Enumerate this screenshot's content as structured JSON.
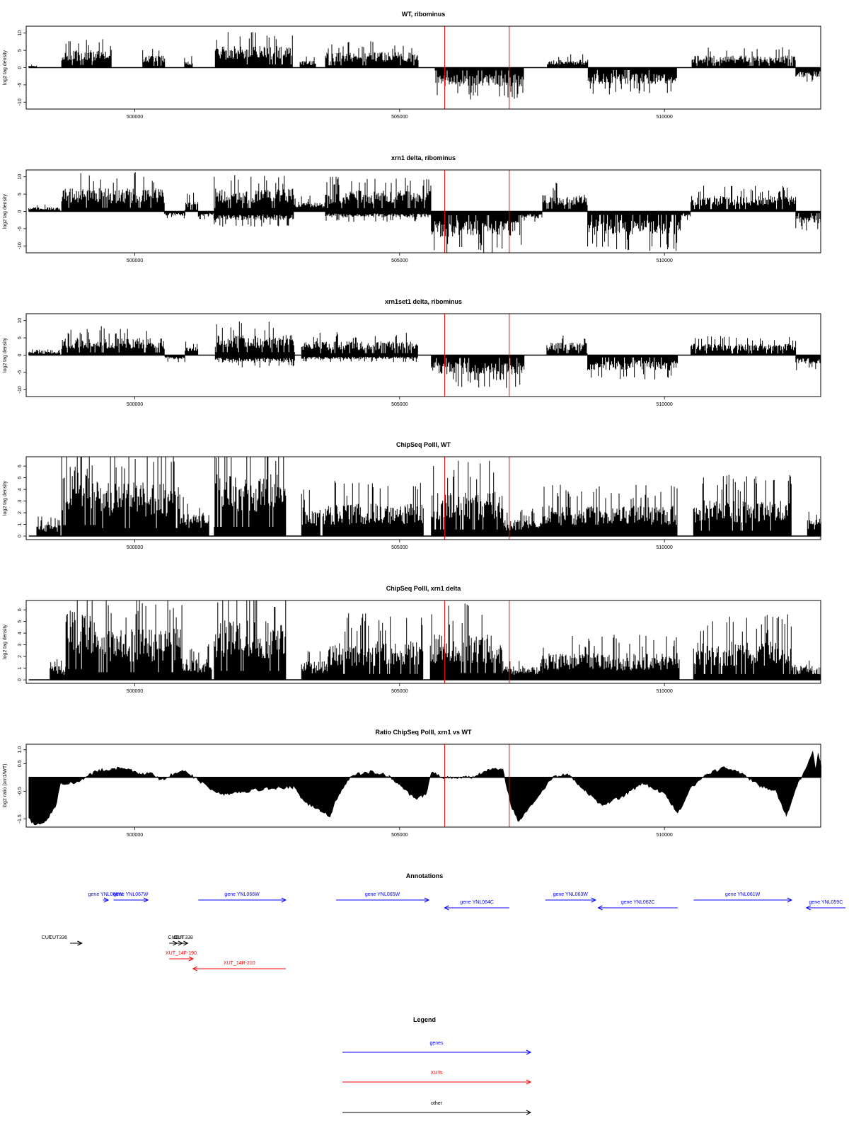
{
  "colors": {
    "gene": "#0000ff",
    "xut": "#ff0000",
    "other": "#000000",
    "marker": "#ff0000",
    "signal": "#000000"
  },
  "chart_data": [
    {
      "type": "area",
      "title": "WT, ribominus",
      "ylabel": "log2 tag density",
      "xlim": [
        497950,
        512950
      ],
      "ylim": [
        -12,
        12
      ],
      "yticks": [
        -10,
        -5,
        0,
        5,
        10
      ],
      "ytick_labels": [
        "-10",
        "-5",
        "0",
        "5",
        "10"
      ],
      "xticks": [
        500000,
        505000,
        510000
      ],
      "xtick_labels": [
        "500000",
        "505000",
        "510000"
      ],
      "markers_x": [
        505850,
        507070
      ],
      "grid": false,
      "segments": [
        {
          "x": [
            498000,
            498150
          ],
          "y": 0.6
        },
        {
          "x": [
            498620,
            499560
          ],
          "y": 5.2
        },
        {
          "x": [
            500150,
            500570
          ],
          "y": 3.5
        },
        {
          "x": [
            500940,
            501100
          ],
          "y": 2.0
        },
        {
          "x": [
            501520,
            502980
          ],
          "y": 6.3
        },
        {
          "x": [
            503120,
            503420
          ],
          "y": 2.0
        },
        {
          "x": [
            503600,
            505350
          ],
          "y": 4.5
        },
        {
          "x": [
            505670,
            507340
          ],
          "y": -5.5
        },
        {
          "x": [
            507790,
            508560
          ],
          "y": 2.3
        },
        {
          "x": [
            508560,
            510230
          ],
          "y": -4.8
        },
        {
          "x": [
            510520,
            512480
          ],
          "y": 3.5
        },
        {
          "x": [
            512480,
            512960
          ],
          "y": -2.8
        }
      ]
    },
    {
      "type": "area",
      "title": "xrn1 delta, ribominus",
      "ylabel": "log2 tag density",
      "xlim": [
        497950,
        512950
      ],
      "ylim": [
        -12,
        12
      ],
      "yticks": [
        -10,
        -5,
        0,
        5,
        10
      ],
      "ytick_labels": [
        "-10",
        "-5",
        "0",
        "5",
        "10"
      ],
      "xticks": [
        500000,
        505000,
        510000
      ],
      "xtick_labels": [
        "500000",
        "505000",
        "510000"
      ],
      "markers_x": [
        505850,
        507070
      ],
      "grid": false,
      "segments": [
        {
          "x": [
            498000,
            498600
          ],
          "y": 1.2
        },
        {
          "x": [
            498620,
            500560
          ],
          "y": 6.8
        },
        {
          "x": [
            500560,
            500950
          ],
          "y": -1.3
        },
        {
          "x": [
            500950,
            501200
          ],
          "y": 3.2
        },
        {
          "x": [
            501200,
            501500
          ],
          "y": -1.6
        },
        {
          "x": [
            501500,
            503000
          ],
          "y": 6.6
        },
        {
          "x": [
            501500,
            503000
          ],
          "y": -2.6
        },
        {
          "x": [
            503000,
            503600
          ],
          "y": 2.8
        },
        {
          "x": [
            503600,
            505600
          ],
          "y": 6.1
        },
        {
          "x": [
            503600,
            505600
          ],
          "y": -1.8
        },
        {
          "x": [
            505600,
            507300
          ],
          "y": -7.5
        },
        {
          "x": [
            507300,
            507700
          ],
          "y": -2.0
        },
        {
          "x": [
            507700,
            508550
          ],
          "y": 5.0
        },
        {
          "x": [
            508550,
            510300
          ],
          "y": -6.8
        },
        {
          "x": [
            510300,
            510500
          ],
          "y": -1.5
        },
        {
          "x": [
            510500,
            512480
          ],
          "y": 4.5
        },
        {
          "x": [
            512480,
            512960
          ],
          "y": -3.5
        }
      ]
    },
    {
      "type": "area",
      "title": "xrn1set1 delta, ribominus",
      "ylabel": "log2 tag density",
      "xlim": [
        497950,
        512950
      ],
      "ylim": [
        -12,
        12
      ],
      "yticks": [
        -10,
        -5,
        0,
        5,
        10
      ],
      "ytick_labels": [
        "-10",
        "-5",
        "0",
        "5",
        "10"
      ],
      "xticks": [
        500000,
        505000,
        510000
      ],
      "xtick_labels": [
        "500000",
        "505000",
        "510000"
      ],
      "markers_x": [
        505850,
        507070
      ],
      "grid": false,
      "segments": [
        {
          "x": [
            498000,
            498600
          ],
          "y": 1.0
        },
        {
          "x": [
            498620,
            500570
          ],
          "y": 5.0
        },
        {
          "x": [
            500570,
            500950
          ],
          "y": -1.2
        },
        {
          "x": [
            500950,
            501200
          ],
          "y": 2.4
        },
        {
          "x": [
            501520,
            503020
          ],
          "y": 5.8
        },
        {
          "x": [
            501520,
            503020
          ],
          "y": -2.2
        },
        {
          "x": [
            503150,
            505350
          ],
          "y": 4.0
        },
        {
          "x": [
            503150,
            505350
          ],
          "y": -1.2
        },
        {
          "x": [
            505600,
            507350
          ],
          "y": -5.6
        },
        {
          "x": [
            507780,
            508550
          ],
          "y": 3.6
        },
        {
          "x": [
            508550,
            510250
          ],
          "y": -4.5
        },
        {
          "x": [
            510500,
            512480
          ],
          "y": 3.3
        },
        {
          "x": [
            512480,
            512960
          ],
          "y": -2.6
        }
      ]
    },
    {
      "type": "area",
      "title": "ChipSeq PolII, WT",
      "ylabel": "log2 tag density",
      "xlim": [
        497950,
        512950
      ],
      "ylim": [
        -0.3,
        6.8
      ],
      "yticks": [
        0,
        1,
        2,
        3,
        4,
        5,
        6
      ],
      "ytick_labels": [
        "0",
        "1",
        "2",
        "3",
        "4",
        "5",
        "6"
      ],
      "xticks": [
        500000,
        505000,
        510000
      ],
      "xtick_labels": [
        "500000",
        "505000",
        "510000"
      ],
      "markers_x": [
        505850,
        507070
      ],
      "grid": false,
      "segments": [
        {
          "x": [
            498150,
            498600
          ],
          "y": 1.0
        },
        {
          "x": [
            498620,
            499300
          ],
          "y": 6.3
        },
        {
          "x": [
            499300,
            500850
          ],
          "y": 4.6
        },
        {
          "x": [
            500850,
            501400
          ],
          "y": 2.0
        },
        {
          "x": [
            501500,
            502850
          ],
          "y": 5.3
        },
        {
          "x": [
            503150,
            503500
          ],
          "y": 2.5
        },
        {
          "x": [
            503550,
            505450
          ],
          "y": 2.8
        },
        {
          "x": [
            505600,
            506950
          ],
          "y": 3.8
        },
        {
          "x": [
            506950,
            507700
          ],
          "y": 1.4
        },
        {
          "x": [
            507700,
            510250
          ],
          "y": 2.6
        },
        {
          "x": [
            510550,
            512400
          ],
          "y": 3.1
        },
        {
          "x": [
            512700,
            512960
          ],
          "y": 1.5
        }
      ]
    },
    {
      "type": "area",
      "title": "ChipSeq PolII, xrn1 delta",
      "ylabel": "log2 tag density",
      "xlim": [
        497950,
        512950
      ],
      "ylim": [
        -0.3,
        6.8
      ],
      "yticks": [
        0,
        1,
        2,
        3,
        4,
        5,
        6
      ],
      "ytick_labels": [
        "0",
        "1",
        "2",
        "3",
        "4",
        "5",
        "6"
      ],
      "xticks": [
        500000,
        505000,
        510000
      ],
      "xtick_labels": [
        "500000",
        "505000",
        "510000"
      ],
      "markers_x": [
        505850,
        507070
      ],
      "grid": false,
      "segments": [
        {
          "x": [
            498400,
            498700
          ],
          "y": 1.2
        },
        {
          "x": [
            498700,
            499300
          ],
          "y": 6.2
        },
        {
          "x": [
            499300,
            500900
          ],
          "y": 4.4
        },
        {
          "x": [
            500900,
            501450
          ],
          "y": 1.8
        },
        {
          "x": [
            501500,
            502850
          ],
          "y": 5.1
        },
        {
          "x": [
            503150,
            503650
          ],
          "y": 1.6
        },
        {
          "x": [
            503650,
            505450
          ],
          "y": 3.4
        },
        {
          "x": [
            505580,
            506950
          ],
          "y": 3.9
        },
        {
          "x": [
            506950,
            507700
          ],
          "y": 1.2
        },
        {
          "x": [
            507700,
            510280
          ],
          "y": 2.3
        },
        {
          "x": [
            510550,
            512400
          ],
          "y": 3.3
        },
        {
          "x": [
            512400,
            512960
          ],
          "y": 1.3
        }
      ]
    },
    {
      "type": "area",
      "title": "Ratio ChipSeq PolII, xrn1 vs WT",
      "ylabel": "log2 ratio (xrn1/WT)",
      "xlim": [
        497950,
        512950
      ],
      "ylim": [
        -1.8,
        1.2
      ],
      "yticks": [
        -1.5,
        -0.5,
        0.5,
        1.0
      ],
      "ytick_labels": [
        "-1.5",
        "-0.5",
        "0.5",
        "1.0"
      ],
      "xticks": [
        500000,
        505000,
        510000
      ],
      "xtick_labels": [
        "500000",
        "505000",
        "510000"
      ],
      "markers_x": [
        505850,
        507070
      ],
      "grid": false,
      "ratio_points": [
        [
          498000,
          -1.5
        ],
        [
          498100,
          -1.7
        ],
        [
          498300,
          -1.6
        ],
        [
          498500,
          -1.1
        ],
        [
          498600,
          -0.2
        ],
        [
          498900,
          -0.2
        ],
        [
          499300,
          0.25
        ],
        [
          499800,
          0.35
        ],
        [
          500100,
          0.1
        ],
        [
          500300,
          0.15
        ],
        [
          500500,
          -0.1
        ],
        [
          500900,
          0.3
        ],
        [
          501500,
          -0.5
        ],
        [
          501700,
          -0.6
        ],
        [
          502500,
          -0.4
        ],
        [
          503000,
          -0.35
        ],
        [
          503200,
          -0.9
        ],
        [
          503500,
          -1.2
        ],
        [
          503700,
          -1.4
        ],
        [
          503800,
          -0.8
        ],
        [
          504100,
          0.1
        ],
        [
          504500,
          0.2
        ],
        [
          504800,
          0.05
        ],
        [
          505000,
          -0.3
        ],
        [
          505300,
          -0.8
        ],
        [
          505500,
          -0.6
        ],
        [
          505600,
          0.2
        ],
        [
          505800,
          0.0
        ],
        [
          506400,
          0.0
        ],
        [
          506700,
          0.3
        ],
        [
          506950,
          0.3
        ],
        [
          507100,
          -1.0
        ],
        [
          507250,
          -1.6
        ],
        [
          507400,
          -1.2
        ],
        [
          507700,
          -0.5
        ],
        [
          507900,
          0.05
        ],
        [
          508200,
          0.1
        ],
        [
          508500,
          -0.5
        ],
        [
          508800,
          -1.0
        ],
        [
          509200,
          -0.7
        ],
        [
          509600,
          -0.2
        ],
        [
          510000,
          -0.6
        ],
        [
          510250,
          -1.3
        ],
        [
          510500,
          -0.4
        ],
        [
          510800,
          0.1
        ],
        [
          511100,
          0.35
        ],
        [
          511500,
          0.1
        ],
        [
          511800,
          -0.3
        ],
        [
          512100,
          -0.5
        ],
        [
          512300,
          -1.4
        ],
        [
          512500,
          -0.3
        ],
        [
          512700,
          0.4
        ],
        [
          512800,
          1.0
        ],
        [
          512850,
          0.3
        ],
        [
          512900,
          0.85
        ],
        [
          512960,
          0.4
        ]
      ]
    }
  ],
  "annotations": {
    "title": "Annotations",
    "features": [
      {
        "label": "gene YNL068W",
        "type": "gene",
        "strand": "+",
        "x": [
          499400,
          499500
        ],
        "row": 0
      },
      {
        "label": "gene YNL067W",
        "type": "gene",
        "strand": "+",
        "x": [
          499600,
          500250
        ],
        "row": 0
      },
      {
        "label": "gene YNL066W",
        "type": "gene",
        "strand": "+",
        "x": [
          501200,
          502850
        ],
        "row": 0
      },
      {
        "label": "gene YNL065W",
        "type": "gene",
        "strand": "+",
        "x": [
          503800,
          505550
        ],
        "row": 0
      },
      {
        "label": "gene YNL064C",
        "type": "gene",
        "strand": "-",
        "x": [
          505850,
          507070
        ],
        "row": 1
      },
      {
        "label": "gene YNL063W",
        "type": "gene",
        "strand": "+",
        "x": [
          507750,
          508700
        ],
        "row": 0
      },
      {
        "label": "gene YNL062C",
        "type": "gene",
        "strand": "-",
        "x": [
          508750,
          510250
        ],
        "row": 1
      },
      {
        "label": "gene YNL061W",
        "type": "gene",
        "strand": "+",
        "x": [
          510550,
          512400
        ],
        "row": 0
      },
      {
        "label": "gene YNL059C",
        "type": "gene",
        "strand": "-",
        "x": [
          512680,
          514600
        ],
        "row": 1
      },
      {
        "label": "CUT",
        "type": "other",
        "strand": "+",
        "x": [
          498780,
          499000
        ],
        "row": 2
      },
      {
        "label": "CUT336",
        "type": "other",
        "strand": "+",
        "x": [
          498780,
          499000
        ],
        "row": 2
      },
      {
        "label": "CUT",
        "type": "other",
        "strand": "+",
        "x": [
          500650,
          500800
        ],
        "row": 2
      },
      {
        "label": "CUT",
        "type": "other",
        "strand": "+",
        "x": [
          500750,
          500900
        ],
        "row": 2
      },
      {
        "label": "CUT338",
        "type": "other",
        "strand": "+",
        "x": [
          500850,
          501000
        ],
        "row": 2
      },
      {
        "label": "XUT_14F-190",
        "type": "xut",
        "strand": "+",
        "x": [
          500650,
          501100
        ],
        "row": 3
      },
      {
        "label": "XUT_14R-210",
        "type": "xut",
        "strand": "-",
        "x": [
          501100,
          502850
        ],
        "row": 4
      }
    ]
  },
  "legend": {
    "title": "Legend",
    "items": [
      {
        "label": "genes",
        "type": "gene"
      },
      {
        "label": "XUTs",
        "type": "xut"
      },
      {
        "label": "other",
        "type": "other"
      }
    ]
  }
}
